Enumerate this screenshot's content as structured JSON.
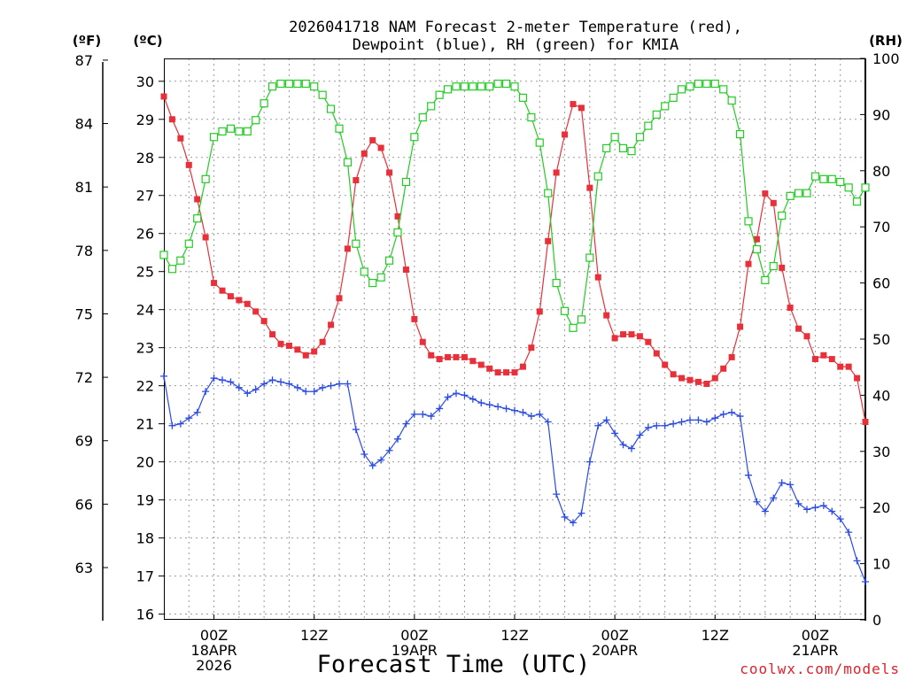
{
  "chart_data": {
    "type": "line",
    "title": [
      "2026041718 NAM Forecast 2-meter Temperature (red),",
      "Dewpoint (blue), RH (green) for KMIA"
    ],
    "xlabel": "Forecast Time (UTC)",
    "credit": "coolwx.com/models",
    "units": {
      "fahrenheit": "(ºF)",
      "celsius": "(ºC)",
      "rh": "(RH)"
    },
    "x_range_hours": [
      -6,
      78
    ],
    "x_ticks": [
      {
        "hour": 0,
        "lines": [
          "00Z",
          "18APR",
          "2026"
        ]
      },
      {
        "hour": 12,
        "lines": [
          "12Z"
        ]
      },
      {
        "hour": 24,
        "lines": [
          "00Z",
          "19APR"
        ]
      },
      {
        "hour": 36,
        "lines": [
          "12Z"
        ]
      },
      {
        "hour": 48,
        "lines": [
          "00Z",
          "20APR"
        ]
      },
      {
        "hour": 60,
        "lines": [
          "12Z"
        ]
      },
      {
        "hour": 72,
        "lines": [
          "00Z",
          "21APR"
        ]
      }
    ],
    "celsius_axis": {
      "range": [
        15.85,
        30.6
      ],
      "ticks": [
        16,
        17,
        18,
        19,
        20,
        21,
        22,
        23,
        24,
        25,
        26,
        27,
        28,
        29,
        30
      ]
    },
    "fahrenheit_axis": {
      "ticks": [
        63,
        66,
        69,
        72,
        75,
        78,
        81,
        84,
        87
      ]
    },
    "rh_axis": {
      "range": [
        0,
        100
      ],
      "ticks": [
        0,
        10,
        20,
        30,
        40,
        50,
        60,
        70,
        80,
        90,
        100
      ]
    },
    "series": [
      {
        "name": "Temperature",
        "units": "°C",
        "color": "#e8303a",
        "marker": "filled-square",
        "axis": "celsius",
        "values": [
          [
            -6,
            29.6
          ],
          [
            -5,
            29.0
          ],
          [
            -4,
            28.5
          ],
          [
            -3,
            27.8
          ],
          [
            -2,
            26.9
          ],
          [
            -1,
            25.9
          ],
          [
            0,
            24.7
          ],
          [
            1,
            24.5
          ],
          [
            2,
            24.35
          ],
          [
            3,
            24.25
          ],
          [
            4,
            24.15
          ],
          [
            5,
            23.95
          ],
          [
            6,
            23.7
          ],
          [
            7,
            23.35
          ],
          [
            8,
            23.1
          ],
          [
            9,
            23.05
          ],
          [
            10,
            22.95
          ],
          [
            11,
            22.8
          ],
          [
            12,
            22.9
          ],
          [
            13,
            23.15
          ],
          [
            14,
            23.6
          ],
          [
            15,
            24.3
          ],
          [
            16,
            25.6
          ],
          [
            17,
            27.4
          ],
          [
            18,
            28.1
          ],
          [
            19,
            28.45
          ],
          [
            20,
            28.25
          ],
          [
            21,
            27.6
          ],
          [
            22,
            26.45
          ],
          [
            23,
            25.05
          ],
          [
            24,
            23.75
          ],
          [
            25,
            23.15
          ],
          [
            26,
            22.8
          ],
          [
            27,
            22.7
          ],
          [
            28,
            22.75
          ],
          [
            29,
            22.75
          ],
          [
            30,
            22.75
          ],
          [
            31,
            22.65
          ],
          [
            32,
            22.55
          ],
          [
            33,
            22.45
          ],
          [
            34,
            22.35
          ],
          [
            35,
            22.35
          ],
          [
            36,
            22.35
          ],
          [
            37,
            22.5
          ],
          [
            38,
            23.0
          ],
          [
            39,
            23.95
          ],
          [
            40,
            25.8
          ],
          [
            41,
            27.6
          ],
          [
            42,
            28.6
          ],
          [
            43,
            29.4
          ],
          [
            44,
            29.3
          ],
          [
            45,
            27.2
          ],
          [
            46,
            24.85
          ],
          [
            47,
            23.85
          ],
          [
            48,
            23.25
          ],
          [
            49,
            23.35
          ],
          [
            50,
            23.35
          ],
          [
            51,
            23.3
          ],
          [
            52,
            23.15
          ],
          [
            53,
            22.85
          ],
          [
            54,
            22.55
          ],
          [
            55,
            22.3
          ],
          [
            56,
            22.2
          ],
          [
            57,
            22.15
          ],
          [
            58,
            22.1
          ],
          [
            59,
            22.05
          ],
          [
            60,
            22.2
          ],
          [
            61,
            22.45
          ],
          [
            62,
            22.75
          ],
          [
            63,
            23.55
          ],
          [
            64,
            25.2
          ],
          [
            65,
            25.85
          ],
          [
            66,
            27.05
          ],
          [
            67,
            26.8
          ],
          [
            68,
            25.1
          ],
          [
            69,
            24.05
          ],
          [
            70,
            23.5
          ],
          [
            71,
            23.3
          ],
          [
            72,
            22.7
          ],
          [
            73,
            22.8
          ],
          [
            74,
            22.7
          ],
          [
            75,
            22.5
          ],
          [
            76,
            22.5
          ],
          [
            77,
            22.2
          ],
          [
            78,
            21.05
          ]
        ]
      },
      {
        "name": "Dewpoint",
        "units": "°C",
        "color": "#2a4ae6",
        "marker": "plus",
        "axis": "celsius",
        "values": [
          [
            -6,
            22.25
          ],
          [
            -5,
            20.95
          ],
          [
            -4,
            21.0
          ],
          [
            -3,
            21.15
          ],
          [
            -2,
            21.3
          ],
          [
            -1,
            21.85
          ],
          [
            0,
            22.2
          ],
          [
            1,
            22.15
          ],
          [
            2,
            22.1
          ],
          [
            3,
            21.95
          ],
          [
            4,
            21.8
          ],
          [
            5,
            21.9
          ],
          [
            6,
            22.05
          ],
          [
            7,
            22.15
          ],
          [
            8,
            22.1
          ],
          [
            9,
            22.05
          ],
          [
            10,
            21.95
          ],
          [
            11,
            21.85
          ],
          [
            12,
            21.85
          ],
          [
            13,
            21.95
          ],
          [
            14,
            22.0
          ],
          [
            15,
            22.05
          ],
          [
            16,
            22.05
          ],
          [
            17,
            20.85
          ],
          [
            18,
            20.2
          ],
          [
            19,
            19.9
          ],
          [
            20,
            20.05
          ],
          [
            21,
            20.3
          ],
          [
            22,
            20.6
          ],
          [
            23,
            21.0
          ],
          [
            24,
            21.25
          ],
          [
            25,
            21.25
          ],
          [
            26,
            21.2
          ],
          [
            27,
            21.4
          ],
          [
            28,
            21.7
          ],
          [
            29,
            21.8
          ],
          [
            30,
            21.75
          ],
          [
            31,
            21.65
          ],
          [
            32,
            21.55
          ],
          [
            33,
            21.5
          ],
          [
            34,
            21.45
          ],
          [
            35,
            21.4
          ],
          [
            36,
            21.35
          ],
          [
            37,
            21.3
          ],
          [
            38,
            21.2
          ],
          [
            39,
            21.25
          ],
          [
            40,
            21.05
          ],
          [
            41,
            19.15
          ],
          [
            42,
            18.55
          ],
          [
            43,
            18.4
          ],
          [
            44,
            18.65
          ],
          [
            45,
            20.0
          ],
          [
            46,
            20.95
          ],
          [
            47,
            21.1
          ],
          [
            48,
            20.75
          ],
          [
            49,
            20.45
          ],
          [
            50,
            20.35
          ],
          [
            51,
            20.7
          ],
          [
            52,
            20.9
          ],
          [
            53,
            20.95
          ],
          [
            54,
            20.95
          ],
          [
            55,
            21.0
          ],
          [
            56,
            21.05
          ],
          [
            57,
            21.1
          ],
          [
            58,
            21.1
          ],
          [
            59,
            21.05
          ],
          [
            60,
            21.15
          ],
          [
            61,
            21.25
          ],
          [
            62,
            21.3
          ],
          [
            63,
            21.2
          ],
          [
            64,
            19.65
          ],
          [
            65,
            18.95
          ],
          [
            66,
            18.7
          ],
          [
            67,
            19.05
          ],
          [
            68,
            19.45
          ],
          [
            69,
            19.4
          ],
          [
            70,
            18.9
          ],
          [
            71,
            18.75
          ],
          [
            72,
            18.8
          ],
          [
            73,
            18.85
          ],
          [
            74,
            18.7
          ],
          [
            75,
            18.5
          ],
          [
            76,
            18.15
          ],
          [
            77,
            17.4
          ],
          [
            78,
            16.85
          ]
        ]
      },
      {
        "name": "Relative Humidity",
        "units": "%",
        "color": "#22cc22",
        "marker": "open-square",
        "axis": "rh",
        "values": [
          [
            -6,
            65
          ],
          [
            -5,
            62.5
          ],
          [
            -4,
            64
          ],
          [
            -3,
            67
          ],
          [
            -2,
            71.5
          ],
          [
            -1,
            78.5
          ],
          [
            0,
            86
          ],
          [
            1,
            87
          ],
          [
            2,
            87.5
          ],
          [
            3,
            87
          ],
          [
            4,
            87
          ],
          [
            5,
            89
          ],
          [
            6,
            92
          ],
          [
            7,
            95
          ],
          [
            8,
            95.5
          ],
          [
            9,
            95.5
          ],
          [
            10,
            95.5
          ],
          [
            11,
            95.5
          ],
          [
            12,
            95
          ],
          [
            13,
            93.5
          ],
          [
            14,
            91
          ],
          [
            15,
            87.5
          ],
          [
            16,
            81.5
          ],
          [
            17,
            67
          ],
          [
            18,
            62
          ],
          [
            19,
            60
          ],
          [
            20,
            61
          ],
          [
            21,
            64
          ],
          [
            22,
            69
          ],
          [
            23,
            78
          ],
          [
            24,
            86
          ],
          [
            25,
            89.5
          ],
          [
            26,
            91.5
          ],
          [
            27,
            93.5
          ],
          [
            28,
            94.5
          ],
          [
            29,
            95
          ],
          [
            30,
            95
          ],
          [
            31,
            95
          ],
          [
            32,
            95
          ],
          [
            33,
            95
          ],
          [
            34,
            95.5
          ],
          [
            35,
            95.5
          ],
          [
            36,
            95
          ],
          [
            37,
            93
          ],
          [
            38,
            89.5
          ],
          [
            39,
            85
          ],
          [
            40,
            76
          ],
          [
            41,
            60
          ],
          [
            42,
            55
          ],
          [
            43,
            52
          ],
          [
            44,
            53.5
          ],
          [
            45,
            64.5
          ],
          [
            46,
            79
          ],
          [
            47,
            84
          ],
          [
            48,
            86
          ],
          [
            49,
            84
          ],
          [
            50,
            83.5
          ],
          [
            51,
            86
          ],
          [
            52,
            88
          ],
          [
            53,
            90
          ],
          [
            54,
            91.5
          ],
          [
            55,
            93
          ],
          [
            56,
            94.5
          ],
          [
            57,
            95
          ],
          [
            58,
            95.5
          ],
          [
            59,
            95.5
          ],
          [
            60,
            95.5
          ],
          [
            61,
            94.5
          ],
          [
            62,
            92.5
          ],
          [
            63,
            86.5
          ],
          [
            64,
            71
          ],
          [
            65,
            66
          ],
          [
            66,
            60.5
          ],
          [
            67,
            63
          ],
          [
            68,
            72
          ],
          [
            69,
            75.5
          ],
          [
            70,
            76
          ],
          [
            71,
            76
          ],
          [
            72,
            79
          ],
          [
            73,
            78.5
          ],
          [
            74,
            78.5
          ],
          [
            75,
            78
          ],
          [
            76,
            77
          ],
          [
            77,
            74.5
          ],
          [
            78,
            77
          ]
        ]
      }
    ]
  }
}
